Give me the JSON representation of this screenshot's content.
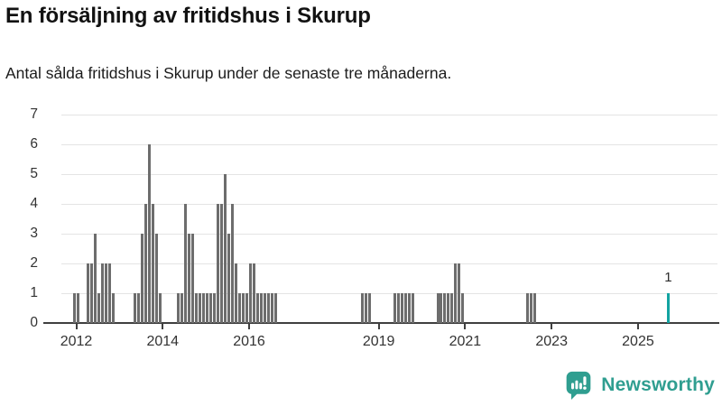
{
  "title": "En försäljning av fritidshus i Skurup",
  "subtitle": "Antal sålda fritidshus i Skurup under de senaste tre månaderna.",
  "branding": {
    "logo_text": "Newsworthy",
    "logo_icon": "bar-chart-exclamation-badge",
    "logo_color": "#2f9e90"
  },
  "chart_data": {
    "type": "bar",
    "title": "En försäljning av fritidshus i Skurup",
    "subtitle": "Antal sålda fritidshus i Skurup under de senaste tre månaderna.",
    "xlabel": "",
    "ylabel": "",
    "ylim": [
      0,
      7
    ],
    "grid": true,
    "y_tick_labels": [
      "0",
      "1",
      "2",
      "3",
      "4",
      "5",
      "6",
      "7"
    ],
    "x_tick_years": [
      2012,
      2014,
      2016,
      2019,
      2021,
      2023,
      2025
    ],
    "bar_color": "#6d6d6d",
    "highlight_color": "#13a3a1",
    "points": [
      [
        "2011-12",
        1
      ],
      [
        "2012-01",
        1
      ],
      [
        "2012-04",
        2
      ],
      [
        "2012-05",
        2
      ],
      [
        "2012-06",
        3
      ],
      [
        "2012-07",
        1
      ],
      [
        "2012-08",
        2
      ],
      [
        "2012-09",
        2
      ],
      [
        "2012-10",
        2
      ],
      [
        "2012-11",
        1
      ],
      [
        "2013-05",
        1
      ],
      [
        "2013-06",
        1
      ],
      [
        "2013-07",
        3
      ],
      [
        "2013-08",
        4
      ],
      [
        "2013-09",
        6
      ],
      [
        "2013-10",
        4
      ],
      [
        "2013-11",
        3
      ],
      [
        "2013-12",
        1
      ],
      [
        "2014-05",
        1
      ],
      [
        "2014-06",
        1
      ],
      [
        "2014-07",
        4
      ],
      [
        "2014-08",
        3
      ],
      [
        "2014-09",
        3
      ],
      [
        "2014-10",
        1
      ],
      [
        "2014-11",
        1
      ],
      [
        "2014-12",
        1
      ],
      [
        "2015-01",
        1
      ],
      [
        "2015-02",
        1
      ],
      [
        "2015-03",
        1
      ],
      [
        "2015-04",
        4
      ],
      [
        "2015-05",
        4
      ],
      [
        "2015-06",
        5
      ],
      [
        "2015-07",
        3
      ],
      [
        "2015-08",
        4
      ],
      [
        "2015-09",
        2
      ],
      [
        "2015-10",
        1
      ],
      [
        "2015-11",
        1
      ],
      [
        "2015-12",
        1
      ],
      [
        "2016-01",
        2
      ],
      [
        "2016-02",
        2
      ],
      [
        "2016-03",
        1
      ],
      [
        "2016-04",
        1
      ],
      [
        "2016-05",
        1
      ],
      [
        "2016-06",
        1
      ],
      [
        "2016-07",
        1
      ],
      [
        "2016-08",
        1
      ],
      [
        "2018-08",
        1
      ],
      [
        "2018-09",
        1
      ],
      [
        "2018-10",
        1
      ],
      [
        "2019-05",
        1
      ],
      [
        "2019-06",
        1
      ],
      [
        "2019-07",
        1
      ],
      [
        "2019-08",
        1
      ],
      [
        "2019-09",
        1
      ],
      [
        "2019-10",
        1
      ],
      [
        "2020-05",
        1
      ],
      [
        "2020-06",
        1
      ],
      [
        "2020-07",
        1
      ],
      [
        "2020-08",
        1
      ],
      [
        "2020-09",
        1
      ],
      [
        "2020-10",
        2
      ],
      [
        "2020-11",
        2
      ],
      [
        "2020-12",
        1
      ],
      [
        "2022-06",
        1
      ],
      [
        "2022-07",
        1
      ],
      [
        "2022-08",
        1
      ],
      [
        "2025-09",
        1
      ]
    ],
    "highlight_point": {
      "month": "2025-09",
      "value": 1,
      "label": "1"
    },
    "legend": null
  }
}
